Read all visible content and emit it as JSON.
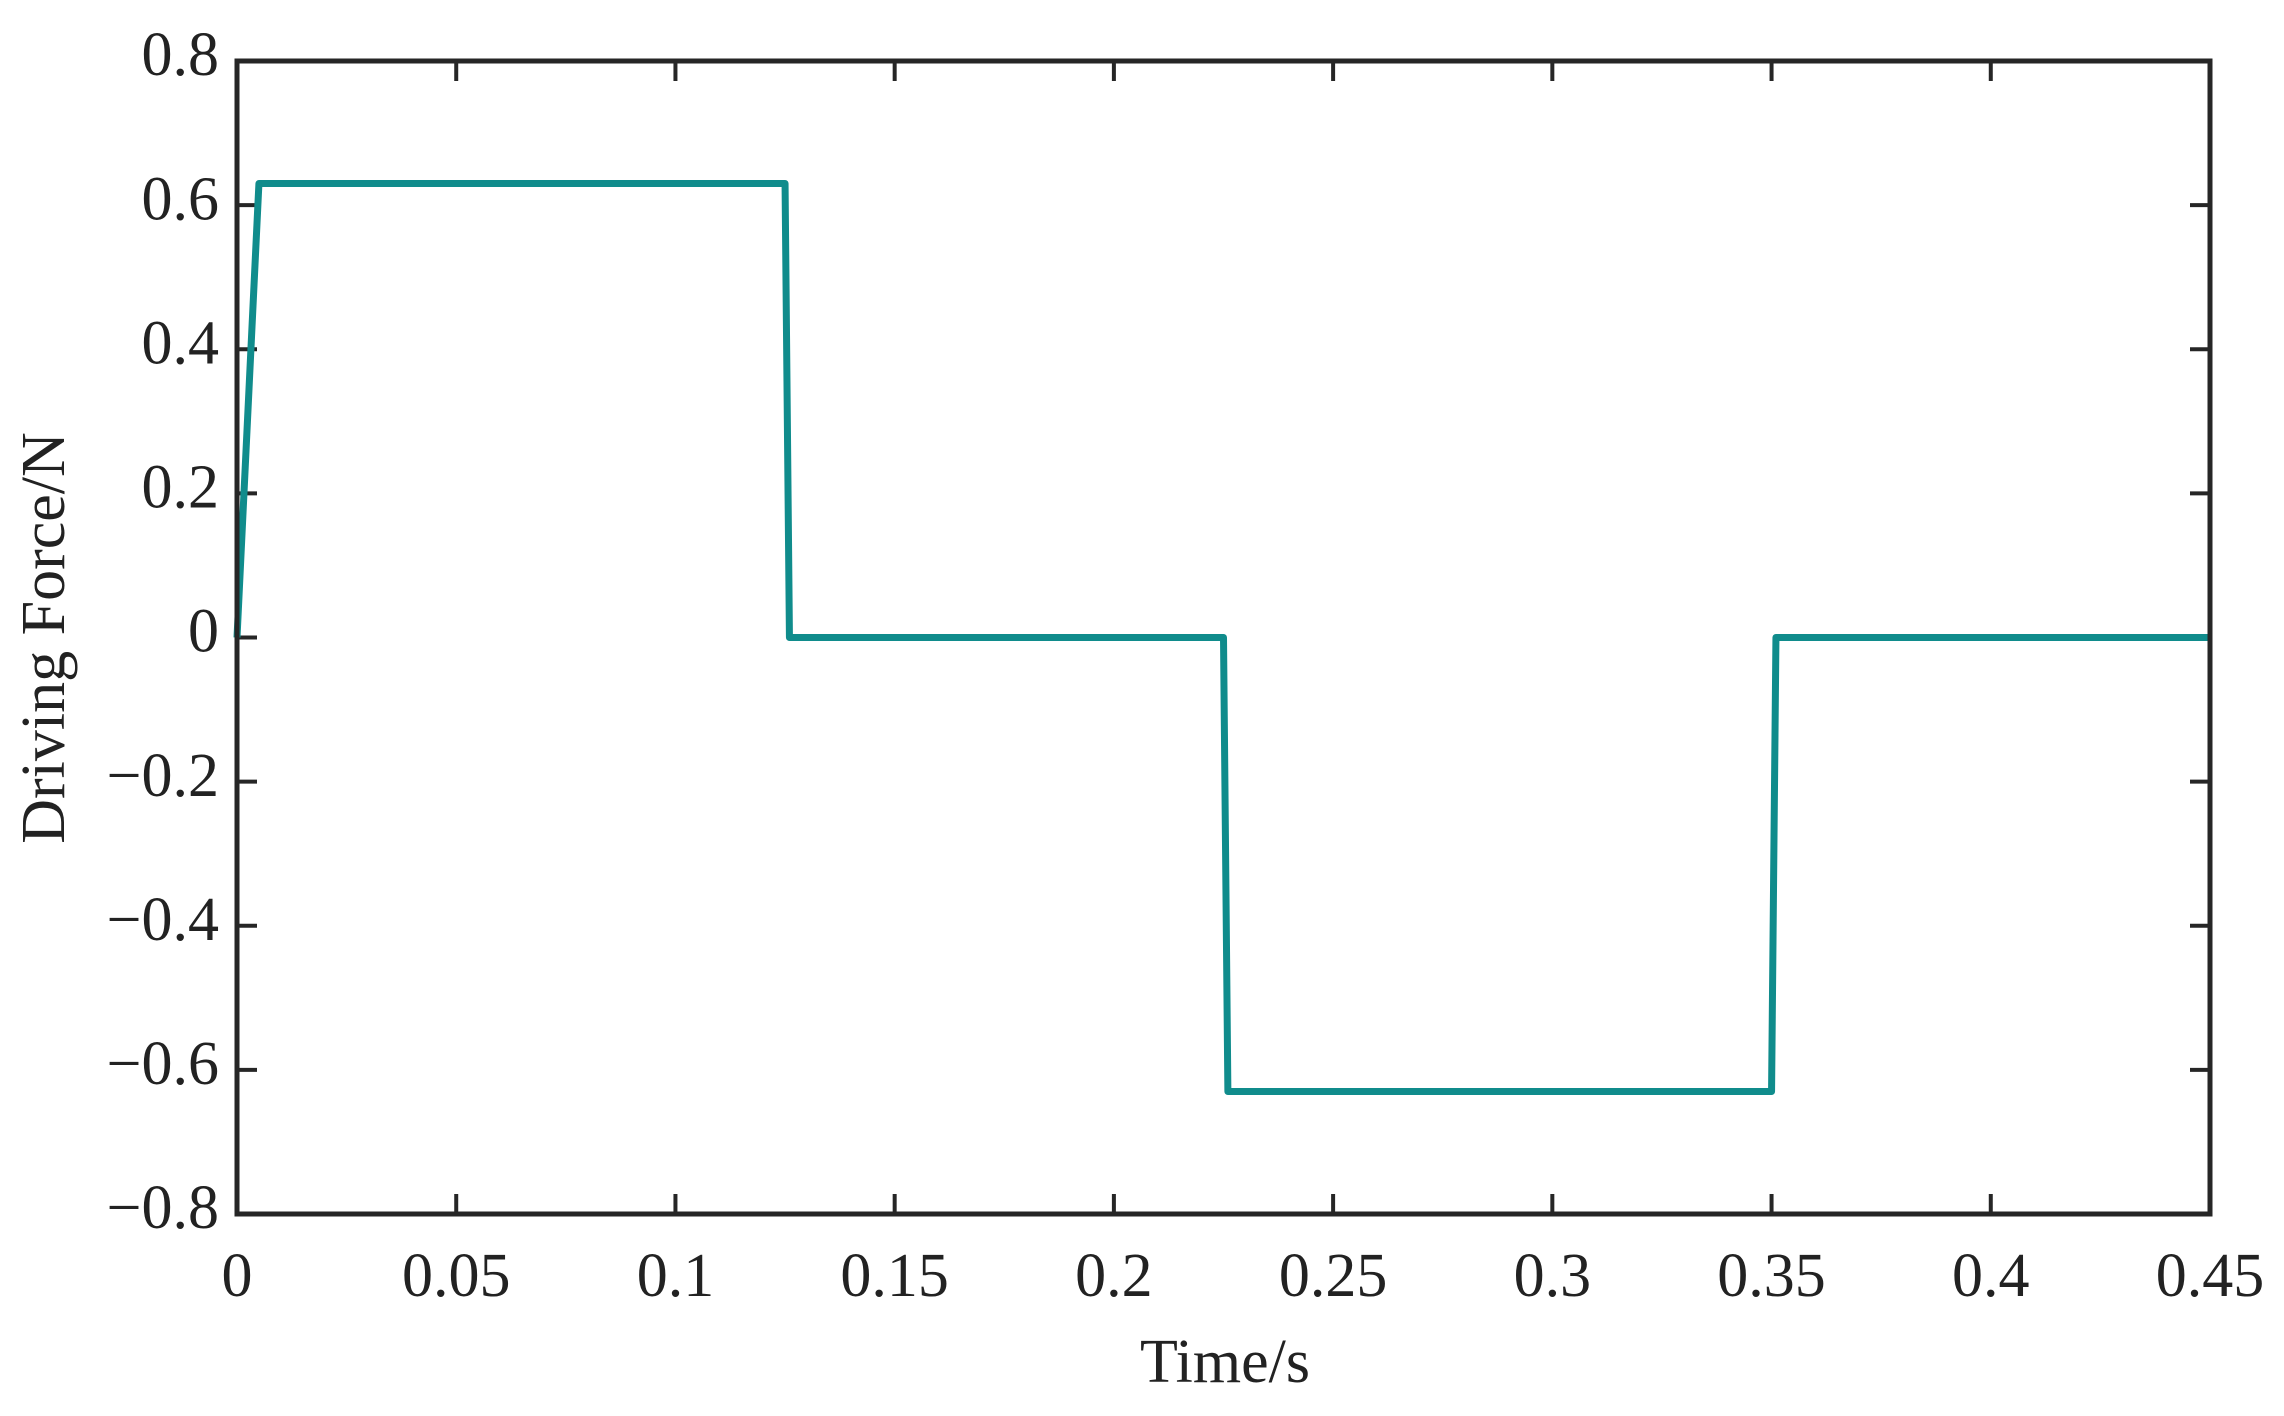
{
  "chart_data": {
    "type": "line",
    "x_label": "Time/s",
    "y_label": "Driving Force/N",
    "x": [
      0,
      0.005,
      0.125,
      0.126,
      0.225,
      0.226,
      0.35,
      0.351,
      0.45
    ],
    "values": [
      0,
      0.63,
      0.63,
      0,
      0,
      -0.63,
      -0.63,
      0,
      0
    ],
    "color": "#108c8c",
    "xlim": [
      0,
      0.45
    ],
    "xticks": [
      0,
      0.05,
      0.1,
      0.15,
      0.2,
      0.25,
      0.3,
      0.35,
      0.4,
      0.45
    ],
    "ylim": [
      -0.8,
      0.8
    ],
    "yticks": [
      {
        "value": -0.8,
        "label": "−0.8"
      },
      {
        "value": -0.6,
        "label": "−0.6"
      },
      {
        "value": -0.4,
        "label": "−0.4"
      },
      {
        "value": -0.2,
        "label": "−0.2"
      },
      0,
      0.2,
      0.4,
      0.6,
      0.8
    ],
    "grid": false
  }
}
